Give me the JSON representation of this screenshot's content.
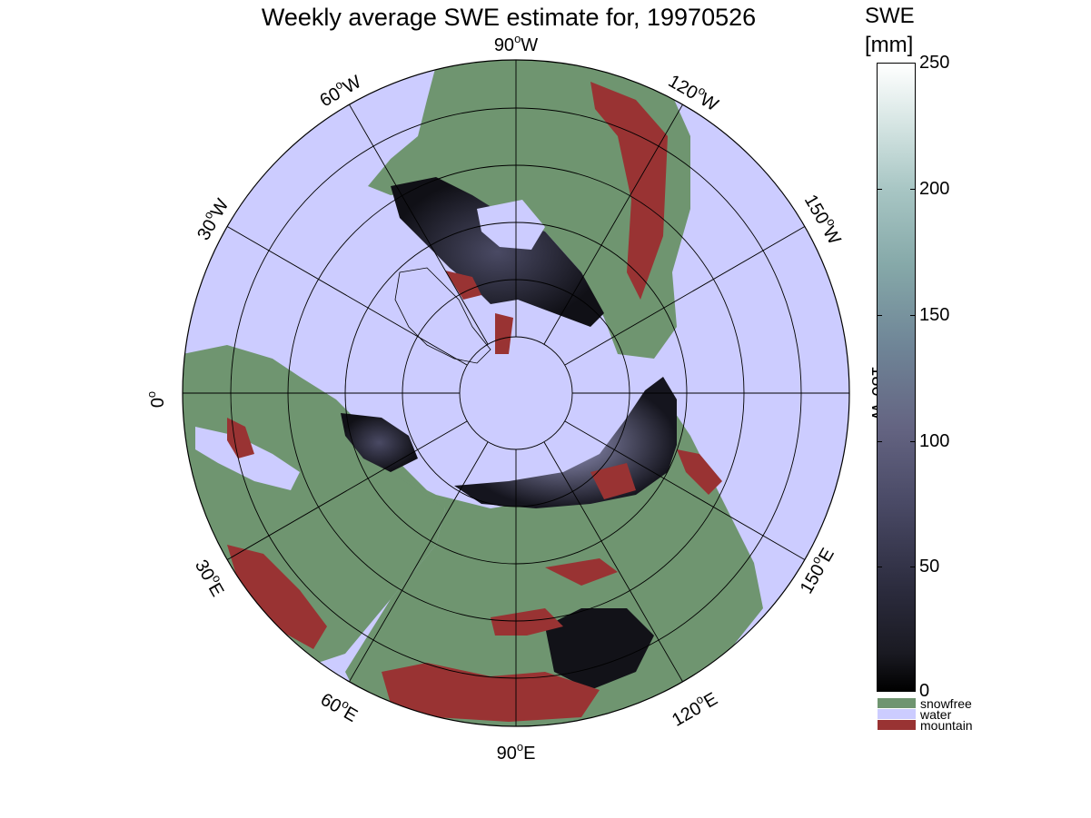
{
  "title": "Weekly average SWE estimate for, 19970526",
  "colorbar": {
    "title_line1": "SWE",
    "title_line2": "[mm]",
    "ticks": [
      "250",
      "200",
      "150",
      "100",
      "50",
      "0"
    ],
    "categories": [
      {
        "label": "snowfree",
        "color": "#6f9570"
      },
      {
        "label": "water",
        "color": "#ccccff"
      },
      {
        "label": "mountain",
        "color": "#993333"
      }
    ]
  },
  "map": {
    "projection": "polar stereographic (north pole)",
    "ocean_color": "#ccccff",
    "land_color": "#6f9570",
    "mountain_color": "#993333",
    "longitude_labels": [
      {
        "deg": "90",
        "dir": "W"
      },
      {
        "deg": "120",
        "dir": "W"
      },
      {
        "deg": "150",
        "dir": "W"
      },
      {
        "deg": "180",
        "dir": "W"
      },
      {
        "deg": "150",
        "dir": "E"
      },
      {
        "deg": "120",
        "dir": "E"
      },
      {
        "deg": "90",
        "dir": "E"
      },
      {
        "deg": "60",
        "dir": "E"
      },
      {
        "deg": "30",
        "dir": "E"
      },
      {
        "deg": "0",
        "dir": ""
      },
      {
        "deg": "30",
        "dir": "W"
      },
      {
        "deg": "60",
        "dir": "W"
      }
    ]
  }
}
